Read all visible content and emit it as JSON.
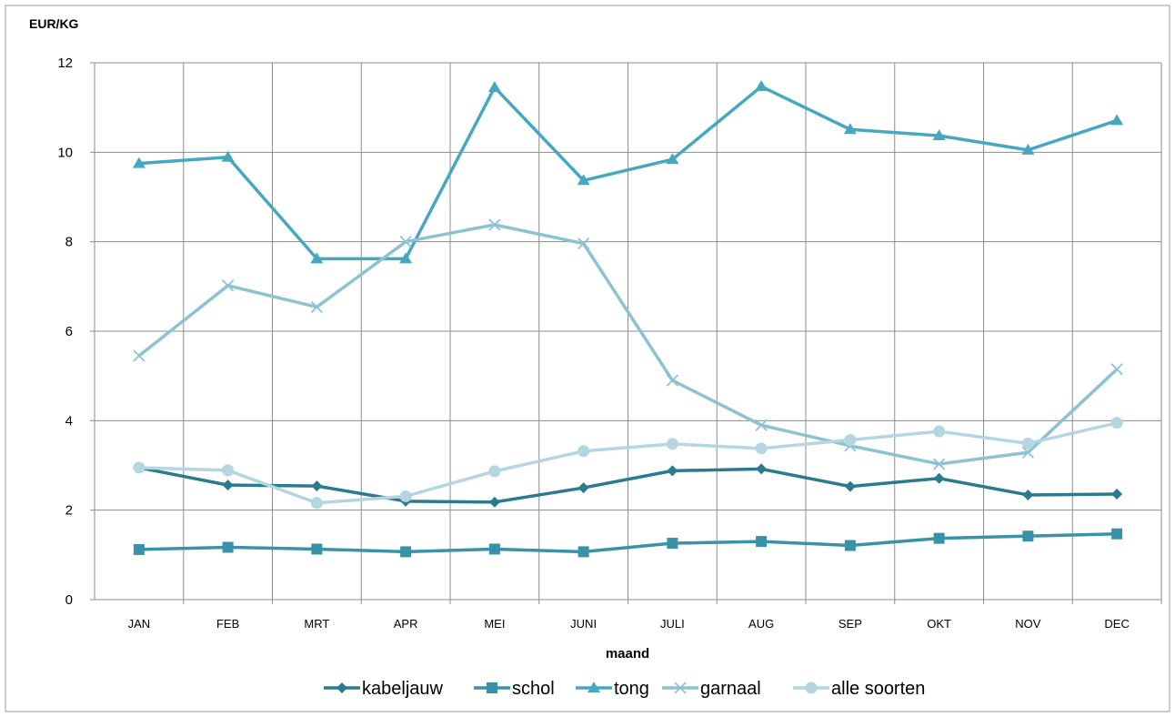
{
  "chart_data": {
    "type": "line",
    "title": "",
    "ylabel": "EUR/KG",
    "xlabel": "maand",
    "ylim": [
      0,
      12
    ],
    "yticks": [
      0,
      2,
      4,
      6,
      8,
      10,
      12
    ],
    "grid": true,
    "legend_position": "bottom",
    "categories": [
      "JAN",
      "FEB",
      "MRT",
      "APR",
      "MEI",
      "JUNI",
      "JULI",
      "AUG",
      "SEP",
      "OKT",
      "NOV",
      "DEC"
    ],
    "series": [
      {
        "name": "kabeljauw",
        "marker": "diamond",
        "color": "#2C7A8E",
        "values": [
          2.95,
          2.56,
          2.54,
          2.2,
          2.18,
          2.5,
          2.88,
          2.92,
          2.53,
          2.71,
          2.34,
          2.36
        ]
      },
      {
        "name": "schol",
        "marker": "square",
        "color": "#3A92A8",
        "values": [
          1.12,
          1.17,
          1.13,
          1.07,
          1.13,
          1.07,
          1.26,
          1.3,
          1.21,
          1.37,
          1.42,
          1.47
        ]
      },
      {
        "name": "tong",
        "marker": "triangle",
        "color": "#45A8C0",
        "values": [
          9.75,
          9.89,
          7.62,
          7.62,
          11.45,
          9.37,
          9.84,
          11.47,
          10.51,
          10.37,
          10.05,
          10.71
        ]
      },
      {
        "name": "garnaal",
        "marker": "x",
        "color": "#8DC2D2",
        "values": [
          5.45,
          7.02,
          6.54,
          8.0,
          8.38,
          7.96,
          4.9,
          3.9,
          3.44,
          3.03,
          3.29,
          5.15
        ]
      },
      {
        "name": "alle soorten",
        "marker": "circle",
        "color": "#B4D6E1",
        "values": [
          2.95,
          2.89,
          2.16,
          2.31,
          2.87,
          3.32,
          3.48,
          3.38,
          3.57,
          3.76,
          3.49,
          3.95
        ]
      }
    ]
  }
}
